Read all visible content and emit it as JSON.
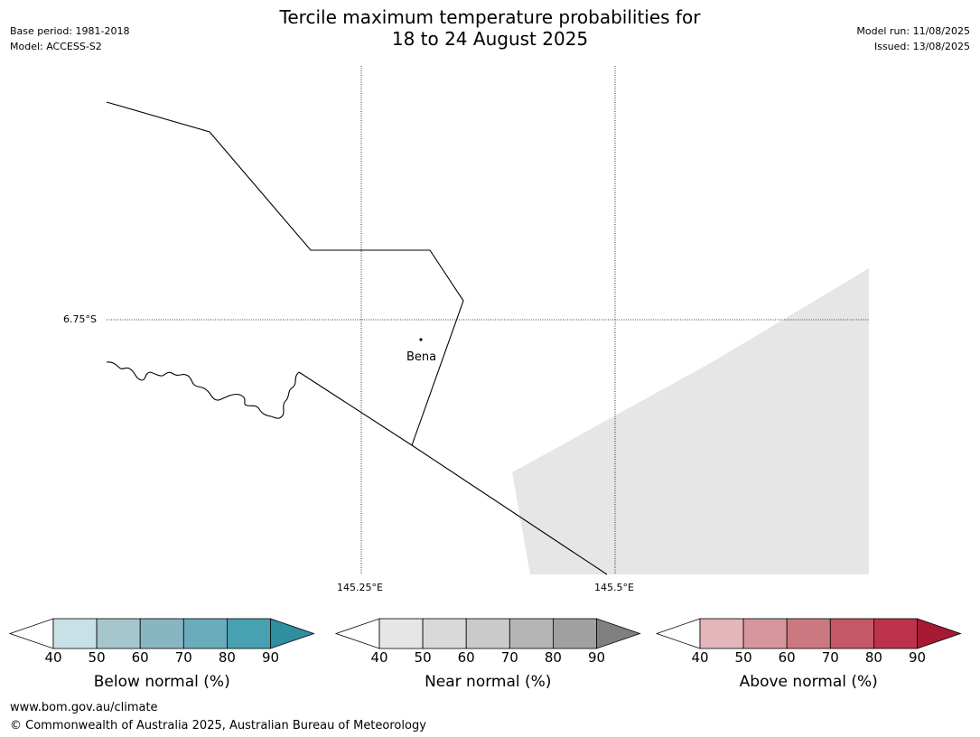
{
  "header": {
    "title_line1": "Tercile maximum temperature probabilities for",
    "title_line2": "18 to 24 August 2025",
    "base_period": "Base period: 1981-2018",
    "model": "Model: ACCESS-S2",
    "model_run": "Model run: 11/08/2025",
    "issued": "Issued: 13/08/2025"
  },
  "map": {
    "lat_label": "6.75°S",
    "lon_labels": [
      "145.25°E",
      "145.5°E"
    ],
    "place": "Bena",
    "shaded_fill_color": "#e6e6e6"
  },
  "colorbars": [
    {
      "label": "Below normal (%)",
      "ticks": [
        "40",
        "50",
        "60",
        "70",
        "80",
        "90"
      ],
      "colors": [
        "#c8e1e6",
        "#a5c6cc",
        "#87b5c2",
        "#6aacbb",
        "#48a1b0",
        "#2f8ea0"
      ]
    },
    {
      "label": "Near normal (%)",
      "ticks": [
        "40",
        "50",
        "60",
        "70",
        "80",
        "90"
      ],
      "colors": [
        "#e6e6e6",
        "#d9d9d9",
        "#cacaca",
        "#b5b5b5",
        "#a0a0a0",
        "#808080"
      ]
    },
    {
      "label": "Above normal (%)",
      "ticks": [
        "40",
        "50",
        "60",
        "70",
        "80",
        "90"
      ],
      "colors": [
        "#e2b6bb",
        "#d6969d",
        "#cc7880",
        "#c45866",
        "#bd324a",
        "#a81934"
      ]
    }
  ],
  "footer": {
    "url": "www.bom.gov.au/climate",
    "copyright": "© Commonwealth of Australia 2025, Australian Bureau of Meteorology"
  }
}
